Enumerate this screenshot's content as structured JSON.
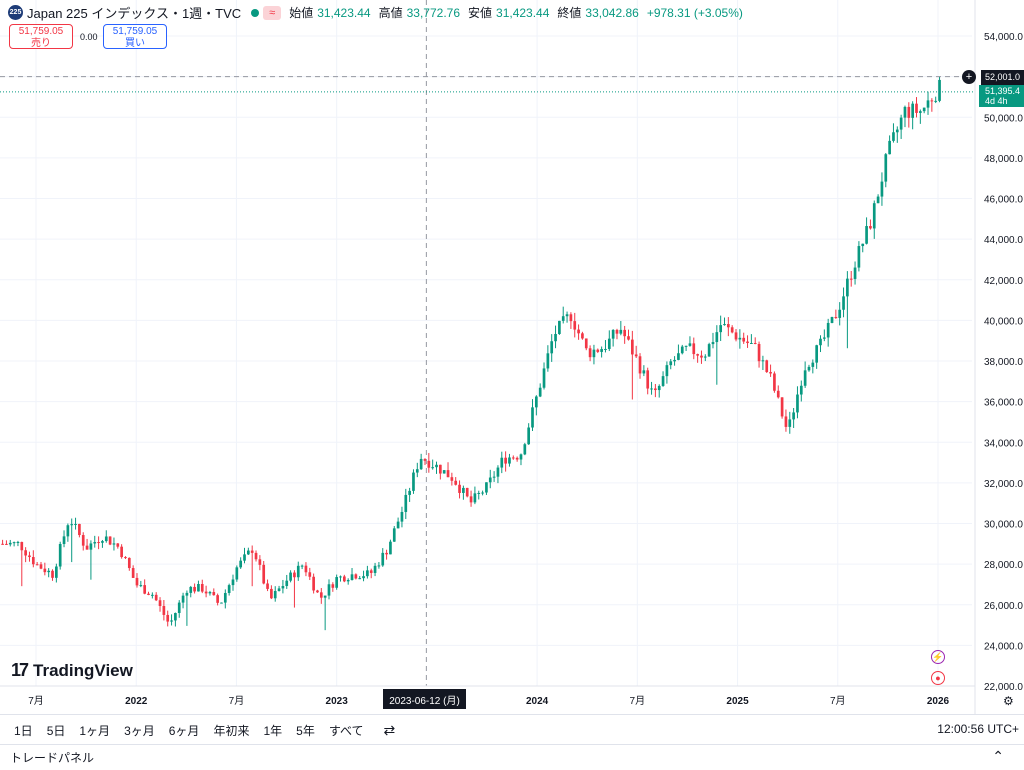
{
  "header": {
    "symbol_icon": "225",
    "title": "Japan 225 インデックス・1週・TVC",
    "open_label": "始値",
    "open": "31,423.44",
    "high_label": "高値",
    "high": "33,772.76",
    "low_label": "安値",
    "low": "31,423.44",
    "close_label": "終値",
    "close": "33,042.86",
    "change": "+978.31 (+3.05%)",
    "wave_badge": "≈"
  },
  "trade": {
    "sell_price": "51,759.05",
    "sell_label": "売り",
    "spread": "0.00",
    "buy_price": "51,759.05",
    "buy_label": "買い"
  },
  "price_axis": {
    "ticks": [
      "54,000.0",
      "52,000.0",
      "50,000.0",
      "48,000.0",
      "46,000.0",
      "44,000.0",
      "42,000.0",
      "40,000.0",
      "38,000.0",
      "36,000.0",
      "34,000.0",
      "32,000.0",
      "30,000.0",
      "28,000.0",
      "26,000.0",
      "24,000.0",
      "22,000.0"
    ],
    "crosshair_label": "52,001.0",
    "last_price_label": "51,395.4",
    "countdown": "4d 4h"
  },
  "time_axis": {
    "labels": [
      "7月",
      "2022",
      "7月",
      "2023",
      "2024",
      "7月",
      "2025",
      "7月",
      "2026"
    ],
    "crosshair_date": "2023-06-12 (月)"
  },
  "branding": {
    "logo_text": "TradingView"
  },
  "bottombar": {
    "timeframes": [
      "1日",
      "5日",
      "1ヶ月",
      "3ヶ月",
      "6ヶ月",
      "年初来",
      "1年",
      "5年",
      "すべて"
    ],
    "clock": "12:00:56 UTC+"
  },
  "tradepanel": {
    "label": "トレードパネル"
  },
  "colors": {
    "up": "#089981",
    "down": "#f23645",
    "grid": "#f0f3fa",
    "axis_text": "#131722"
  },
  "chart_data": {
    "type": "candlestick",
    "interval": "1 week",
    "ylim": [
      22000,
      54000
    ],
    "x_range": [
      "2021-05",
      "2026-01"
    ],
    "points": [
      [
        "2021-05",
        29000
      ],
      [
        "2021-06",
        29000
      ],
      [
        "2021-07",
        28000
      ],
      [
        "2021-08",
        27500
      ],
      [
        "2021-09",
        30300
      ],
      [
        "2021-10",
        28800
      ],
      [
        "2021-11",
        29400
      ],
      [
        "2021-12",
        28800
      ],
      [
        "2022-01",
        27000
      ],
      [
        "2022-02",
        26500
      ],
      [
        "2022-03",
        25000
      ],
      [
        "2022-04",
        26800
      ],
      [
        "2022-05",
        26800
      ],
      [
        "2022-06",
        26000
      ],
      [
        "2022-07",
        27800
      ],
      [
        "2022-08",
        28800
      ],
      [
        "2022-09",
        26200
      ],
      [
        "2022-10",
        27200
      ],
      [
        "2022-11",
        28000
      ],
      [
        "2022-12",
        26300
      ],
      [
        "2023-01",
        27300
      ],
      [
        "2023-02",
        27500
      ],
      [
        "2023-03",
        27500
      ],
      [
        "2023-04",
        28700
      ],
      [
        "2023-05",
        30800
      ],
      [
        "2023-06",
        33300
      ],
      [
        "2023-07",
        32800
      ],
      [
        "2023-08",
        32200
      ],
      [
        "2023-09",
        31000
      ],
      [
        "2023-10",
        31800
      ],
      [
        "2023-11",
        33200
      ],
      [
        "2023-12",
        33400
      ],
      [
        "2024-01",
        36300
      ],
      [
        "2024-02",
        39300
      ],
      [
        "2024-03",
        40300
      ],
      [
        "2024-04",
        38400
      ],
      [
        "2024-05",
        38700
      ],
      [
        "2024-06",
        39600
      ],
      [
        "2024-07",
        38000
      ],
      [
        "2024-08",
        36200
      ],
      [
        "2024-09",
        37900
      ],
      [
        "2024-10",
        38600
      ],
      [
        "2024-11",
        38300
      ],
      [
        "2024-12",
        39800
      ],
      [
        "2025-01",
        39200
      ],
      [
        "2025-02",
        38700
      ],
      [
        "2025-03",
        37100
      ],
      [
        "2025-04",
        34500
      ],
      [
        "2025-05",
        37700
      ],
      [
        "2025-06",
        38800
      ],
      [
        "2025-07",
        40500
      ],
      [
        "2025-08",
        42800
      ],
      [
        "2025-09",
        44900
      ],
      [
        "2025-10",
        48200
      ],
      [
        "2025-11",
        50300
      ],
      [
        "2025-12",
        50300
      ],
      [
        "2026-01",
        51400
      ]
    ],
    "last_price": 51395.4,
    "crosshair_price": 52001.0,
    "crosshair_date": "2023-06-12"
  }
}
